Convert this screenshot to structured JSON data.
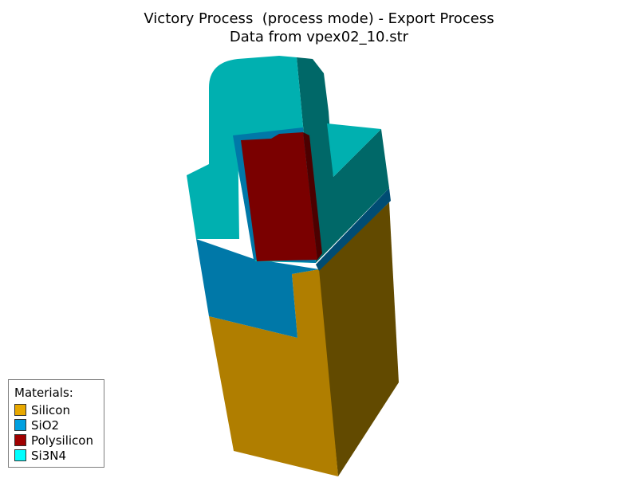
{
  "title": {
    "line1": "Victory Process  (process mode) - Export Process",
    "line2": "Data from vpex02_10.str"
  },
  "legend": {
    "title": "Materials:",
    "items": [
      {
        "label": "Silicon",
        "color": "#e8a800"
      },
      {
        "label": "SiO2",
        "color": "#00a0e0"
      },
      {
        "label": "Polysilicon",
        "color": "#a00000"
      },
      {
        "label": "Si3N4",
        "color": "#00ffff"
      }
    ]
  },
  "materials_colors": {
    "silicon_front": "#b07e00",
    "silicon_side": "#624a00",
    "sio2_front": "#0078a8",
    "si3n4_front": "#00b0b0",
    "si3n4_side": "#006868",
    "poly_front": "#7a0000"
  }
}
